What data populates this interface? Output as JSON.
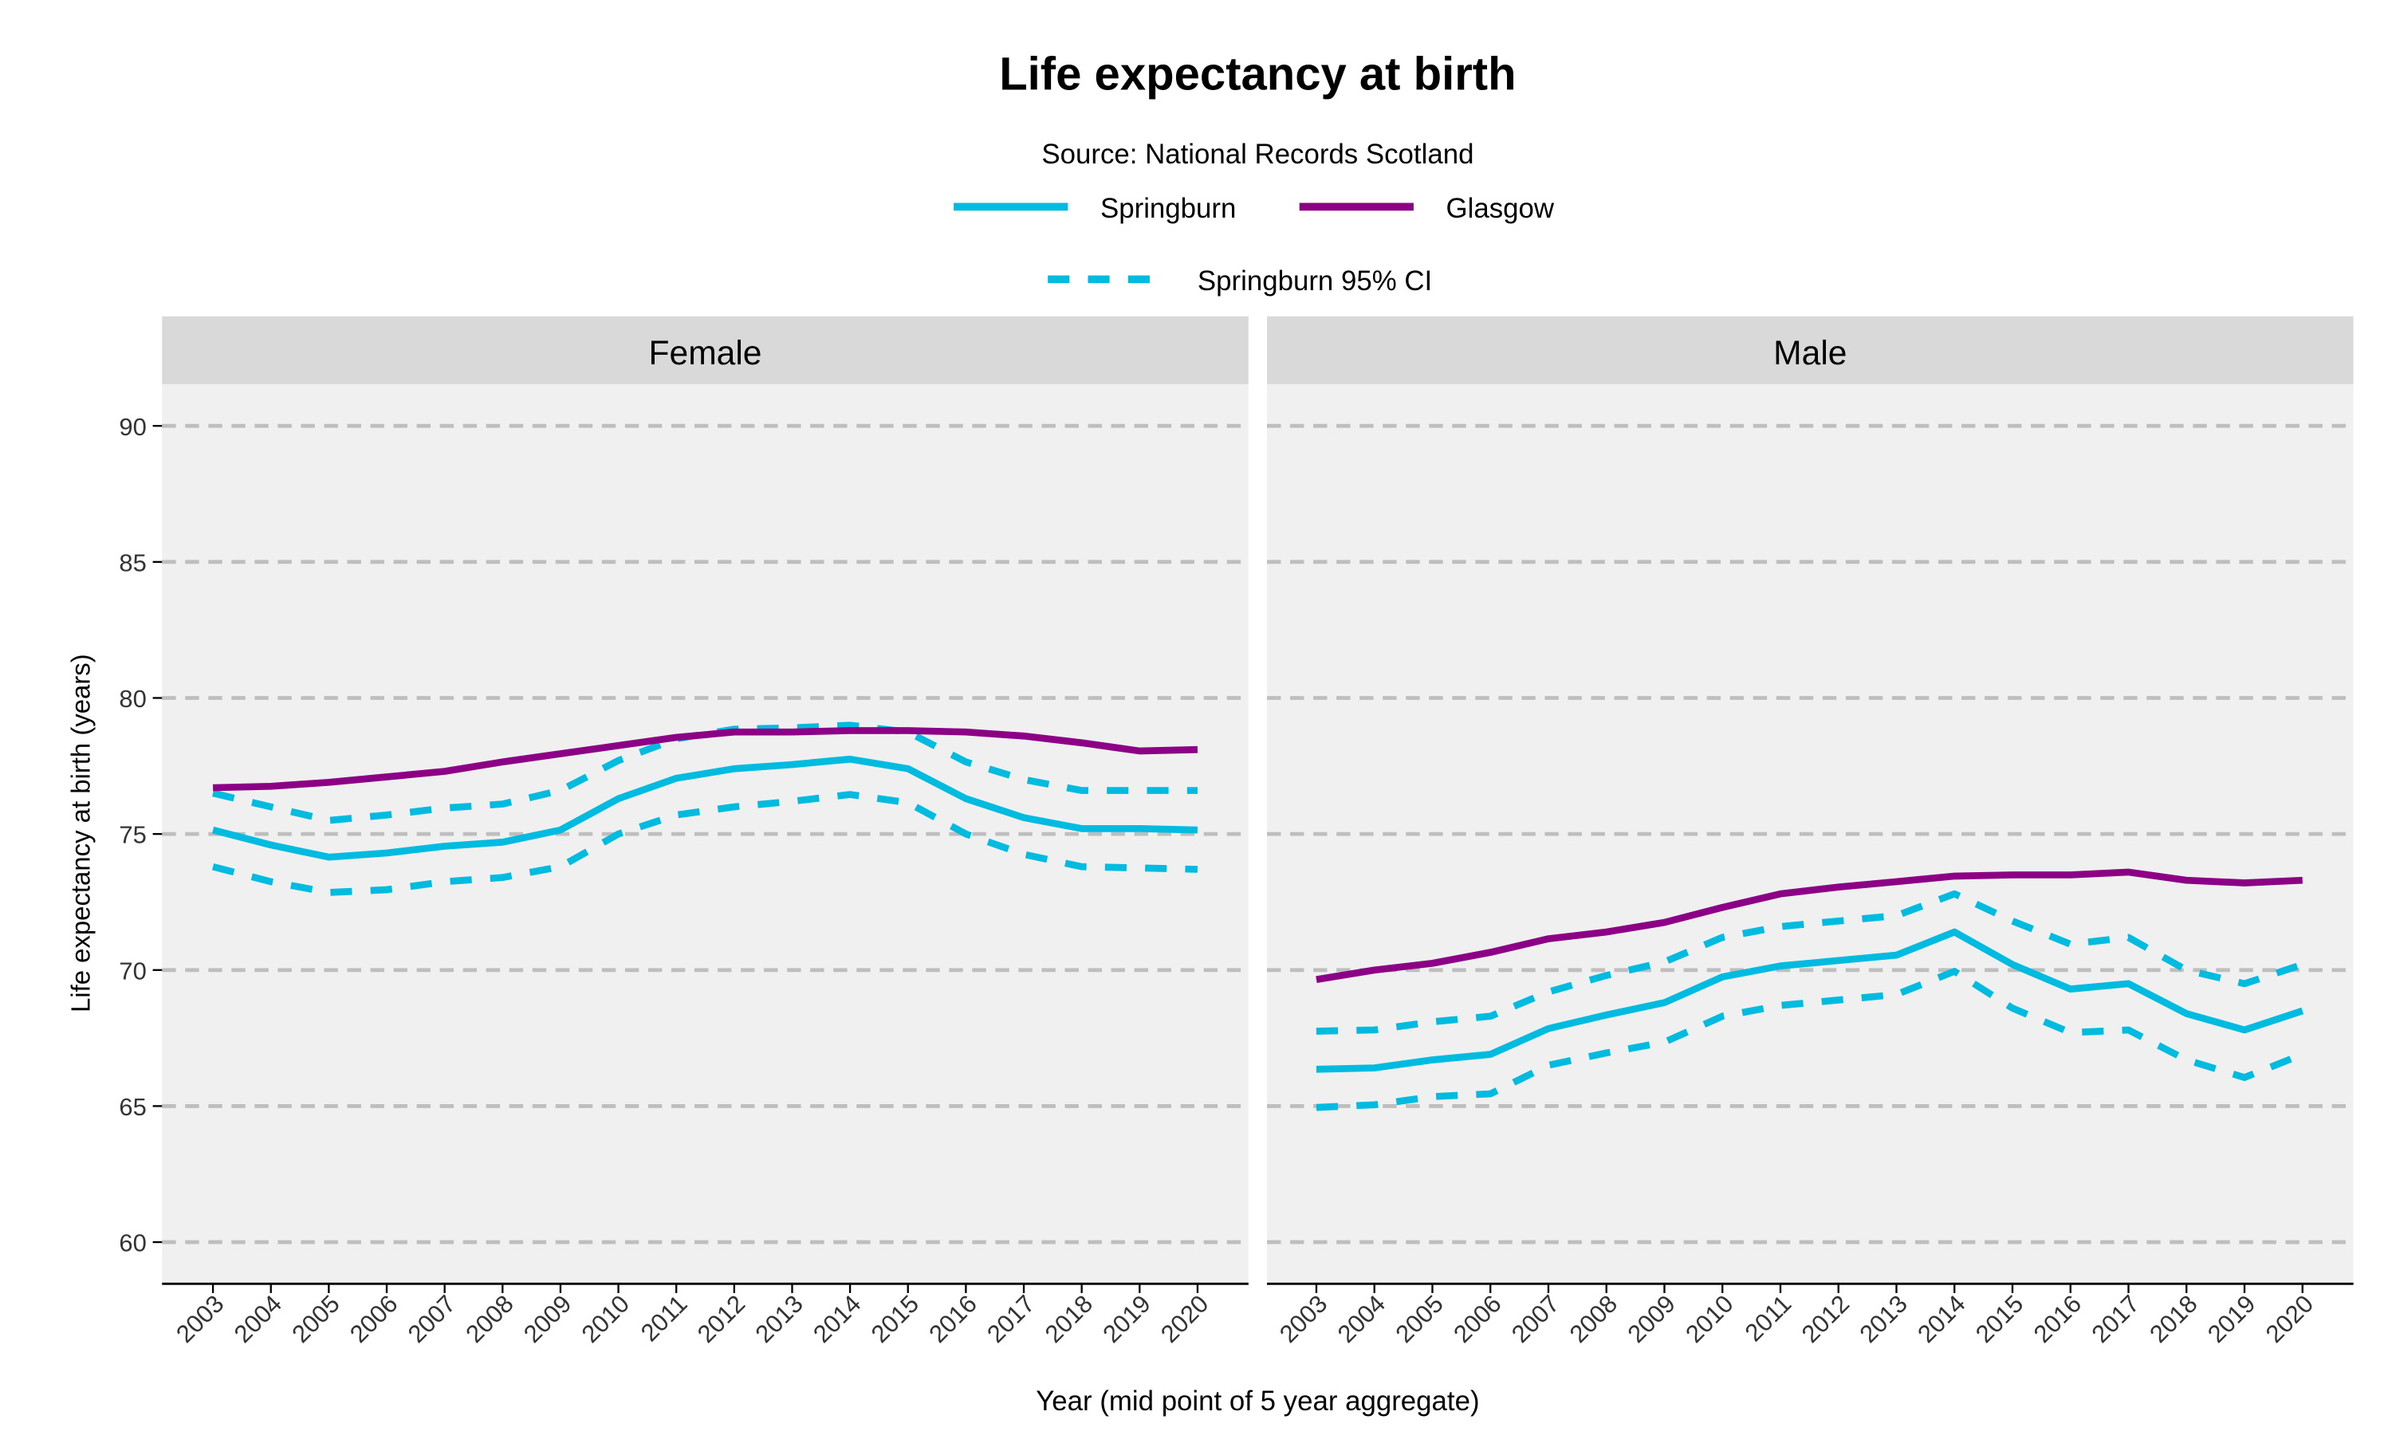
{
  "chart_data": [
    {
      "type": "line",
      "title": "Life expectancy at birth",
      "subtitle": "Source: National Records Scotland",
      "xlabel": "Year (mid point of 5 year aggregate)",
      "ylabel": "Life expectancy at birth (years)",
      "facets": [
        "Female",
        "Male"
      ],
      "ylim": [
        58.5,
        92
      ],
      "yticks": [
        60,
        65,
        70,
        75,
        80,
        85,
        90
      ],
      "grid": "horizontal dashed",
      "legend_placement": "top",
      "legend": [
        {
          "label": "Springburn",
          "style": "solid",
          "color": "#00bbe0"
        },
        {
          "label": "Glasgow",
          "style": "solid",
          "color": "#8c0085"
        },
        {
          "label": "Springburn 95% CI",
          "style": "dashed",
          "color": "#00bbe0"
        }
      ],
      "x": [
        "2003",
        "2004",
        "2005",
        "2006",
        "2007",
        "2008",
        "2009",
        "2010",
        "2011",
        "2012",
        "2013",
        "2014",
        "2015",
        "2016",
        "2017",
        "2018",
        "2019",
        "2020"
      ],
      "panels": {
        "Female": {
          "Glasgow": [
            76.7,
            76.75,
            76.9,
            77.1,
            77.3,
            77.65,
            77.95,
            78.25,
            78.55,
            78.75,
            78.75,
            78.8,
            78.8,
            78.75,
            78.6,
            78.35,
            78.05,
            78.1
          ],
          "Springburn": [
            75.15,
            74.6,
            74.15,
            74.3,
            74.55,
            74.7,
            75.15,
            76.3,
            77.05,
            77.4,
            77.55,
            77.75,
            77.4,
            76.3,
            75.6,
            75.2,
            75.2,
            75.15
          ],
          "Springburn 95% CI upper": [
            76.5,
            76.0,
            75.5,
            75.7,
            75.95,
            76.1,
            76.6,
            77.7,
            78.5,
            78.85,
            78.9,
            79.0,
            78.75,
            77.65,
            77.0,
            76.6,
            76.6,
            76.6
          ],
          "Springburn 95% CI lower": [
            73.8,
            73.25,
            72.85,
            72.95,
            73.25,
            73.4,
            73.8,
            75.0,
            75.7,
            76.0,
            76.2,
            76.45,
            76.15,
            75.0,
            74.25,
            73.8,
            73.75,
            73.7
          ]
        },
        "Male": {
          "Glasgow": [
            69.65,
            70.0,
            70.25,
            70.65,
            71.15,
            71.4,
            71.75,
            72.3,
            72.8,
            73.05,
            73.25,
            73.45,
            73.5,
            73.5,
            73.6,
            73.3,
            73.2,
            73.3
          ],
          "Springburn": [
            66.35,
            66.4,
            66.7,
            66.9,
            67.85,
            68.35,
            68.8,
            69.75,
            70.15,
            70.35,
            70.55,
            71.4,
            70.2,
            69.3,
            69.5,
            68.4,
            67.8,
            68.5
          ],
          "Springburn 95% CI upper": [
            67.75,
            67.8,
            68.1,
            68.3,
            69.2,
            69.8,
            70.3,
            71.2,
            71.6,
            71.8,
            72.0,
            72.8,
            71.8,
            70.95,
            71.2,
            70.0,
            69.5,
            70.2
          ],
          "Springburn 95% CI lower": [
            64.95,
            65.05,
            65.35,
            65.45,
            66.5,
            66.95,
            67.35,
            68.3,
            68.7,
            68.9,
            69.1,
            69.95,
            68.6,
            67.7,
            67.8,
            66.7,
            66.05,
            66.9
          ]
        }
      }
    }
  ]
}
